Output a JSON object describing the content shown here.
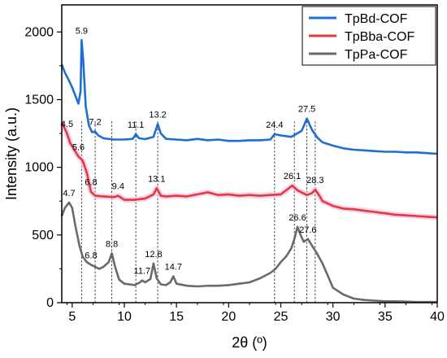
{
  "chart_data": {
    "type": "line",
    "xlabel": "2θ (º)",
    "ylabel": "Intensity (a.u.)",
    "xlim": [
      4,
      40
    ],
    "ylim": [
      0,
      2200
    ],
    "x_ticks": [
      5,
      10,
      15,
      20,
      25,
      30,
      35,
      40
    ],
    "y_ticks": [
      0,
      500,
      1000,
      1500,
      2000
    ],
    "grid": false,
    "legend_position": "top-right",
    "series": [
      {
        "name": "TpBd-COF",
        "color": "#1f6fd1",
        "points": [
          [
            4.0,
            1760
          ],
          [
            4.3,
            1700
          ],
          [
            4.7,
            1640
          ],
          [
            5.0,
            1590
          ],
          [
            5.3,
            1530
          ],
          [
            5.6,
            1470
          ],
          [
            5.8,
            1560
          ],
          [
            5.9,
            1940
          ],
          [
            6.05,
            1800
          ],
          [
            6.3,
            1450
          ],
          [
            6.6,
            1310
          ],
          [
            6.9,
            1260
          ],
          [
            7.2,
            1265
          ],
          [
            7.5,
            1235
          ],
          [
            8.0,
            1215
          ],
          [
            9.0,
            1205
          ],
          [
            10.0,
            1205
          ],
          [
            10.8,
            1210
          ],
          [
            11.1,
            1245
          ],
          [
            11.4,
            1215
          ],
          [
            12.0,
            1208
          ],
          [
            12.8,
            1225
          ],
          [
            13.2,
            1320
          ],
          [
            13.5,
            1250
          ],
          [
            14.0,
            1210
          ],
          [
            15.0,
            1205
          ],
          [
            16.0,
            1200
          ],
          [
            17.0,
            1210
          ],
          [
            18.0,
            1200
          ],
          [
            19.0,
            1205
          ],
          [
            20.0,
            1195
          ],
          [
            21.0,
            1195
          ],
          [
            22.0,
            1200
          ],
          [
            23.0,
            1200
          ],
          [
            24.0,
            1205
          ],
          [
            24.4,
            1245
          ],
          [
            25.0,
            1235
          ],
          [
            26.0,
            1225
          ],
          [
            27.0,
            1270
          ],
          [
            27.5,
            1360
          ],
          [
            28.0,
            1275
          ],
          [
            28.5,
            1220
          ],
          [
            29.0,
            1185
          ],
          [
            30.0,
            1160
          ],
          [
            31.0,
            1140
          ],
          [
            32.0,
            1130
          ],
          [
            33.0,
            1125
          ],
          [
            34.0,
            1120
          ],
          [
            35.0,
            1115
          ],
          [
            36.0,
            1115
          ],
          [
            37.0,
            1110
          ],
          [
            38.0,
            1110
          ],
          [
            39.0,
            1105
          ],
          [
            40.0,
            1100
          ]
        ]
      },
      {
        "name": "TpBba-COF",
        "color": "#e03c3c",
        "points": [
          [
            4.0,
            1330
          ],
          [
            4.2,
            1300
          ],
          [
            4.5,
            1250
          ],
          [
            4.8,
            1180
          ],
          [
            5.2,
            1130
          ],
          [
            5.6,
            1080
          ],
          [
            6.0,
            1050
          ],
          [
            6.4,
            960
          ],
          [
            6.8,
            820
          ],
          [
            7.2,
            790
          ],
          [
            8.0,
            785
          ],
          [
            9.0,
            780
          ],
          [
            9.4,
            790
          ],
          [
            10.0,
            760
          ],
          [
            11.0,
            760
          ],
          [
            12.0,
            770
          ],
          [
            12.8,
            800
          ],
          [
            13.1,
            845
          ],
          [
            13.5,
            790
          ],
          [
            14.0,
            785
          ],
          [
            15.0,
            790
          ],
          [
            16.0,
            785
          ],
          [
            17.0,
            800
          ],
          [
            18.0,
            815
          ],
          [
            19.0,
            795
          ],
          [
            20.0,
            800
          ],
          [
            21.0,
            790
          ],
          [
            22.0,
            795
          ],
          [
            23.0,
            790
          ],
          [
            24.0,
            795
          ],
          [
            25.0,
            800
          ],
          [
            26.1,
            865
          ],
          [
            26.6,
            830
          ],
          [
            27.5,
            795
          ],
          [
            28.0,
            810
          ],
          [
            28.3,
            835
          ],
          [
            28.7,
            790
          ],
          [
            29.0,
            750
          ],
          [
            30.0,
            715
          ],
          [
            31.0,
            695
          ],
          [
            32.0,
            690
          ],
          [
            33.0,
            680
          ],
          [
            34.0,
            670
          ],
          [
            35.0,
            660
          ],
          [
            36.0,
            650
          ],
          [
            37.0,
            645
          ],
          [
            38.0,
            640
          ],
          [
            39.0,
            635
          ],
          [
            40.0,
            630
          ]
        ]
      },
      {
        "name": "TpPa-COF",
        "color": "#6a6a6a",
        "points": [
          [
            4.0,
            640
          ],
          [
            4.3,
            700
          ],
          [
            4.7,
            740
          ],
          [
            5.0,
            700
          ],
          [
            5.3,
            570
          ],
          [
            5.7,
            420
          ],
          [
            6.0,
            340
          ],
          [
            6.4,
            300
          ],
          [
            6.8,
            280
          ],
          [
            7.2,
            265
          ],
          [
            7.6,
            250
          ],
          [
            8.0,
            265
          ],
          [
            8.5,
            300
          ],
          [
            8.8,
            365
          ],
          [
            9.1,
            270
          ],
          [
            9.5,
            170
          ],
          [
            10.0,
            140
          ],
          [
            10.5,
            135
          ],
          [
            11.0,
            130
          ],
          [
            11.5,
            150
          ],
          [
            11.7,
            165
          ],
          [
            12.0,
            150
          ],
          [
            12.5,
            175
          ],
          [
            12.8,
            290
          ],
          [
            13.1,
            180
          ],
          [
            13.5,
            135
          ],
          [
            14.0,
            130
          ],
          [
            14.4,
            150
          ],
          [
            14.7,
            195
          ],
          [
            15.0,
            140
          ],
          [
            16.0,
            125
          ],
          [
            17.0,
            120
          ],
          [
            18.0,
            125
          ],
          [
            19.0,
            125
          ],
          [
            20.0,
            130
          ],
          [
            21.0,
            140
          ],
          [
            22.0,
            150
          ],
          [
            23.0,
            180
          ],
          [
            24.0,
            220
          ],
          [
            24.5,
            250
          ],
          [
            25.0,
            300
          ],
          [
            25.5,
            340
          ],
          [
            26.0,
            400
          ],
          [
            26.3,
            470
          ],
          [
            26.6,
            560
          ],
          [
            26.9,
            500
          ],
          [
            27.2,
            450
          ],
          [
            27.6,
            470
          ],
          [
            28.0,
            420
          ],
          [
            28.5,
            360
          ],
          [
            29.0,
            290
          ],
          [
            29.5,
            200
          ],
          [
            30.0,
            110
          ],
          [
            31.0,
            60
          ],
          [
            32.0,
            30
          ],
          [
            33.0,
            20
          ],
          [
            34.0,
            15
          ],
          [
            35.0,
            10
          ],
          [
            36.0,
            10
          ],
          [
            37.0,
            8
          ],
          [
            38.0,
            5
          ],
          [
            39.0,
            5
          ],
          [
            40.0,
            5
          ]
        ]
      }
    ],
    "peak_labels": [
      {
        "text": "5.9",
        "x": 5.9,
        "y": 1940
      },
      {
        "text": "7.2",
        "x": 7.2,
        "y": 1265
      },
      {
        "text": "11.1",
        "x": 11.1,
        "y": 1245
      },
      {
        "text": "13.2",
        "x": 13.2,
        "y": 1320
      },
      {
        "text": "24.4",
        "x": 24.4,
        "y": 1245
      },
      {
        "text": "27.5",
        "x": 27.5,
        "y": 1360
      },
      {
        "text": "4.5",
        "x": 4.5,
        "y": 1250
      },
      {
        "text": "5.6",
        "x": 5.6,
        "y": 1080
      },
      {
        "text": "6.8",
        "x": 6.8,
        "y": 820
      },
      {
        "text": "9.4",
        "x": 9.4,
        "y": 790
      },
      {
        "text": "13.1",
        "x": 13.1,
        "y": 845
      },
      {
        "text": "26.1",
        "x": 26.1,
        "y": 865
      },
      {
        "text": "28.3",
        "x": 28.3,
        "y": 835
      },
      {
        "text": "4.7",
        "x": 4.7,
        "y": 740
      },
      {
        "text": "6.8",
        "x": 6.8,
        "y": 280
      },
      {
        "text": "8.8",
        "x": 8.8,
        "y": 365
      },
      {
        "text": "11.7",
        "x": 11.7,
        "y": 165
      },
      {
        "text": "12.8",
        "x": 12.8,
        "y": 290
      },
      {
        "text": "14.7",
        "x": 14.7,
        "y": 195
      },
      {
        "text": "26.6",
        "x": 26.6,
        "y": 560
      },
      {
        "text": "27.6",
        "x": 27.6,
        "y": 470
      }
    ],
    "reference_lines_x": [
      5.9,
      7.2,
      8.8,
      11.1,
      13.2,
      24.4,
      26.3,
      27.5,
      28.3
    ]
  }
}
